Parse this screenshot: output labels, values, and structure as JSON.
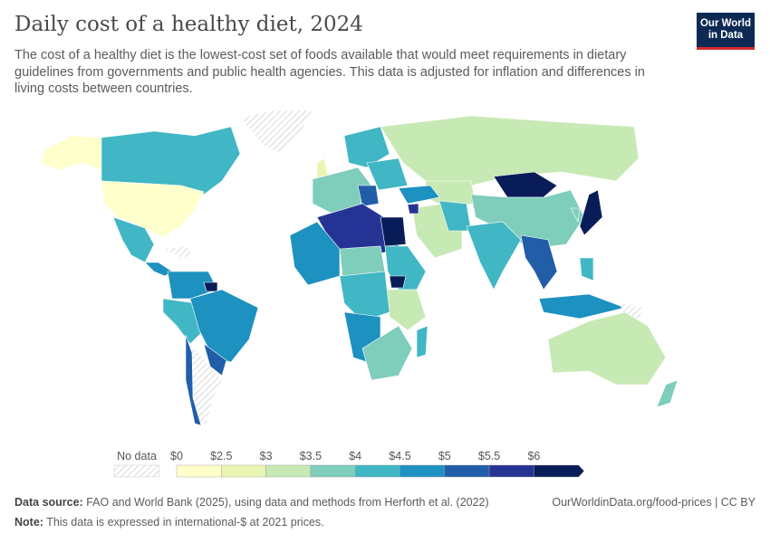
{
  "title": "Daily cost of a healthy diet, 2024",
  "subtitle": "The cost of a healthy diet is the lowest-cost set of foods available that would meet requirements in dietary guidelines from governments and public health agencies. This data is adjusted for inflation and differences in living costs between countries.",
  "logo": "Our World in Data",
  "legend": {
    "no_data_label": "No data",
    "tick_labels": [
      "$0",
      "$2.5",
      "$3",
      "$3.5",
      "$4",
      "$4.5",
      "$5",
      "$5.5",
      "$6"
    ],
    "bin_colors": [
      "#ffffcc",
      "#e8f6b1",
      "#c7e9b4",
      "#7fcdbb",
      "#41b6c4",
      "#1d91c0",
      "#225ea8",
      "#253494",
      "#081d58"
    ]
  },
  "footer": {
    "source_label": "Data source:",
    "source": "FAO and World Bank (2025), using data and methods from Herforth et al. (2022)",
    "url": "OurWorldinData.org/food-prices | CC BY",
    "note_label": "Note:",
    "note": "This data is expressed in international-$ at 2021 prices."
  }
}
